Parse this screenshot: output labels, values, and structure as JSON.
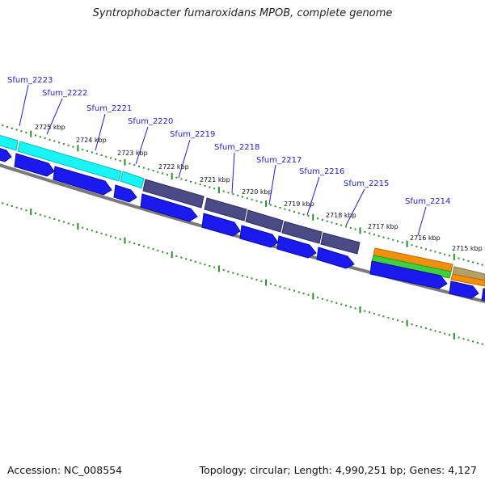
{
  "title": "Syntrophobacter fumaroxidans MPOB, complete genome",
  "footer": {
    "accession": "Accession: NC_008554",
    "summary": "Topology: circular; Length: 4,990,251 bp; Genes: 4,127"
  },
  "colors": {
    "cds_blue": "#1a1aee",
    "cyan": "#19f5f5",
    "purple": "#464682",
    "orange": "#f0900c",
    "green": "#3fcf3f",
    "tan": "#b6a06a",
    "ticks": "#2c8a2c",
    "backbone": "#7a7a7a",
    "label": "#1f1fbf"
  },
  "ruler_ticks": [
    {
      "label": "2725 kbp"
    },
    {
      "label": "2724 kbp"
    },
    {
      "label": "2723 kbp"
    },
    {
      "label": "2722 kbp"
    },
    {
      "label": "2721 kbp"
    },
    {
      "label": "2720 kbp"
    },
    {
      "label": "2719 kbp"
    },
    {
      "label": "2718 kbp"
    },
    {
      "label": "2717 kbp"
    },
    {
      "label": "2716 kbp"
    },
    {
      "label": "2715 kbp"
    }
  ],
  "genes": [
    {
      "name": "Sfum_2223"
    },
    {
      "name": "Sfum_2222"
    },
    {
      "name": "Sfum_2221"
    },
    {
      "name": "Sfum_2220"
    },
    {
      "name": "Sfum_2219"
    },
    {
      "name": "Sfum_2218"
    },
    {
      "name": "Sfum_2217"
    },
    {
      "name": "Sfum_2216"
    },
    {
      "name": "Sfum_2215"
    },
    {
      "name": "Sfum_2214"
    }
  ]
}
